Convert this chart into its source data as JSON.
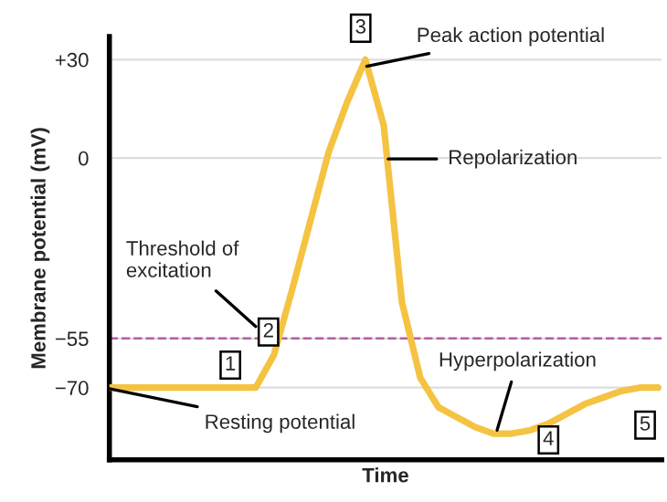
{
  "chart_data": {
    "type": "line",
    "xlabel": "Time",
    "ylabel": "Membrane potential (mV)",
    "categories": [
      null,
      null,
      null,
      null,
      null,
      null,
      null,
      null,
      null,
      null,
      null,
      null,
      null,
      null,
      null,
      null,
      null,
      null,
      null,
      null,
      null,
      null,
      null,
      null,
      null,
      null,
      null,
      null,
      null,
      null,
      null
    ],
    "series": [
      {
        "color": "#f5c342",
        "values": [
          -70,
          -70,
          -70,
          -70,
          -70,
          -70,
          -70,
          -70,
          -70,
          -60,
          -40,
          -19,
          2,
          17,
          30,
          10,
          -44,
          -67,
          -76,
          -79,
          -82,
          -84,
          -84,
          -83,
          -81,
          -78,
          -75,
          -73,
          -71,
          -70,
          -70
        ]
      }
    ],
    "ylim": [
      -92,
      37
    ],
    "yticks": [
      {
        "value": -70,
        "label": "−70"
      },
      {
        "value": -55,
        "label": "−55"
      },
      0,
      {
        "value": 30,
        "label": "+30"
      }
    ],
    "grid": "y",
    "marker": "none",
    "line_style": "solid",
    "tick_labels": "y",
    "ref_lines": [
      {
        "axis": "y",
        "value": -55,
        "color": "#b35fa6",
        "line_style": "dashed"
      }
    ],
    "annotations": [
      "3",
      "Peak action potential",
      "Repolarization",
      "Threshold of\nexcitation",
      "2",
      "1",
      "Resting potential",
      "Hyperpolarization",
      "4",
      "5"
    ]
  }
}
